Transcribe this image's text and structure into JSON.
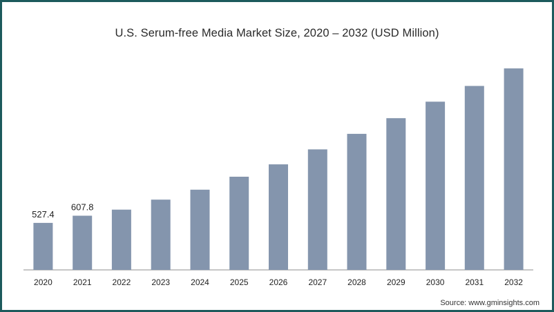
{
  "title": "U.S. Serum-free Media Market Size, 2020 – 2032 (USD Million)",
  "source": "Source: www.gminsights.com",
  "colors": {
    "bar": "#8495ad",
    "axis": "#8c8c8c",
    "frame": "#1d5a5c"
  },
  "chart_data": {
    "type": "bar",
    "categories": [
      "2020",
      "2021",
      "2022",
      "2023",
      "2024",
      "2025",
      "2026",
      "2027",
      "2028",
      "2029",
      "2030",
      "2031",
      "2032"
    ],
    "values": [
      527.4,
      607.8,
      676,
      788,
      900,
      1045,
      1184,
      1352,
      1526,
      1702,
      1887,
      2063,
      2260
    ],
    "data_labels": [
      "527.4",
      "607.8",
      "",
      "",
      "",
      "",
      "",
      "",
      "",
      "",
      "",
      "",
      ""
    ],
    "ylim": [
      0,
      2400
    ],
    "xlabel": "",
    "ylabel": "",
    "grid": false
  }
}
